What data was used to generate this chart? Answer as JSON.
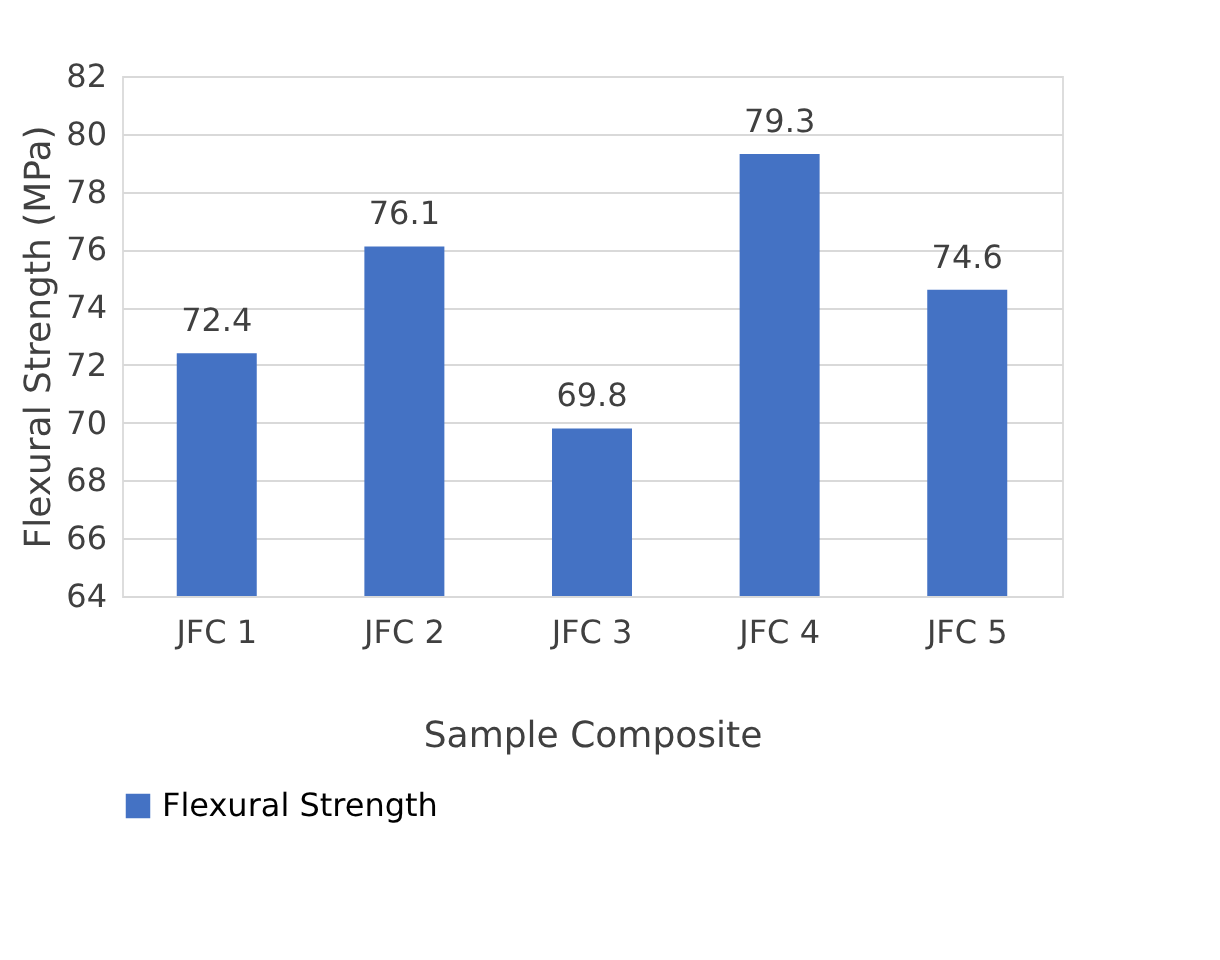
{
  "chart_data": {
    "type": "bar",
    "xlabel": "Sample Composite",
    "ylabel": "Flexural Strength (MPa)",
    "categories": [
      "JFC 1",
      "JFC 2",
      "JFC 3",
      "JFC 4",
      "JFC 5"
    ],
    "series": [
      {
        "name": "Flexural Strength",
        "color": "#4472c4",
        "values": [
          72.4,
          76.1,
          69.8,
          79.3,
          74.6
        ]
      }
    ],
    "ylim": [
      64,
      82
    ],
    "yticks": [
      64,
      66,
      68,
      70,
      72,
      74,
      76,
      78,
      80,
      82
    ],
    "grid": "y",
    "data_labels": true,
    "legend": "bottom"
  }
}
